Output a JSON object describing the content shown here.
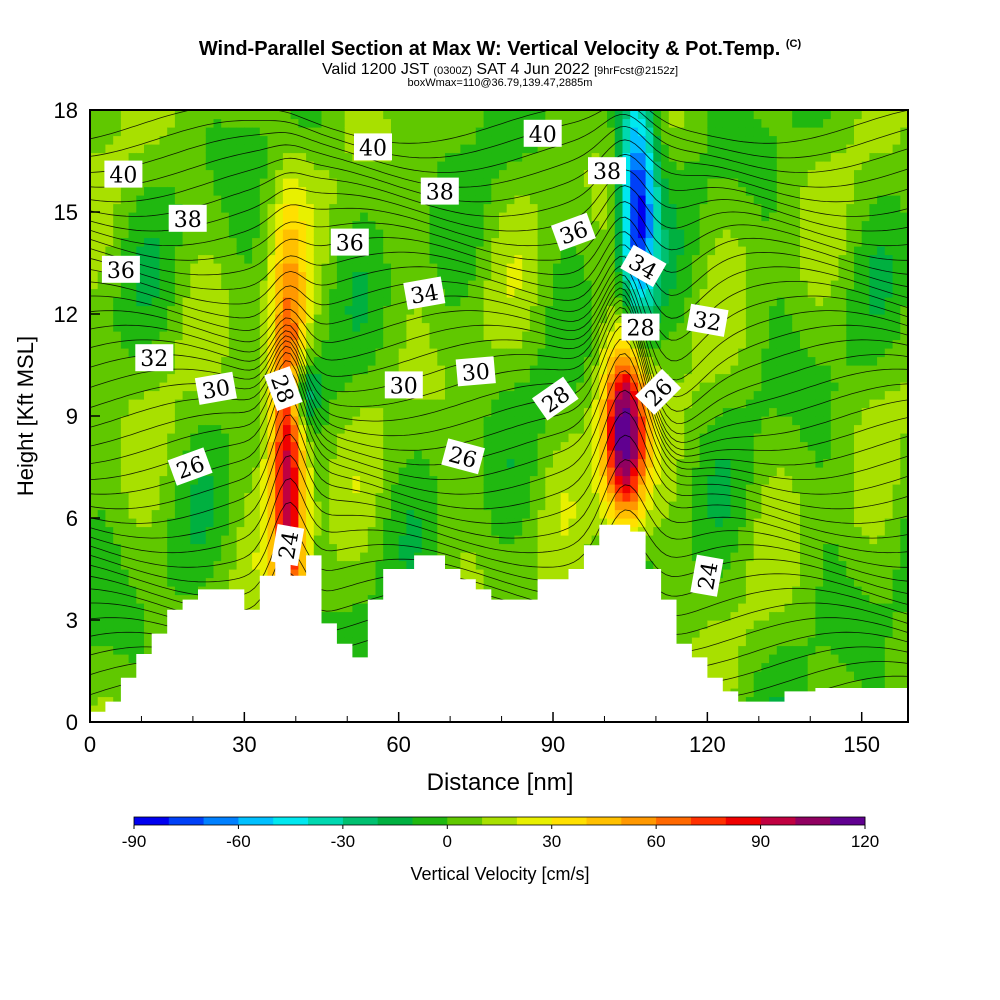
{
  "header": {
    "title": "Wind-Parallel Section at Max W: Vertical Velocity & Pot.Temp.",
    "copyright": "(C)",
    "valid_prefix": "Valid 1200 JST",
    "valid_utc": "(0300Z)",
    "valid_date": "SAT 4 Jun 2022",
    "forecast": "[9hrFcst@2152z]",
    "box_info": "boxWmax=110@36.79,139.47,2885m"
  },
  "chart_data": {
    "type": "heatmap",
    "xlabel": "Distance [nm]",
    "ylabel": "Height [Kft MSL]",
    "xlim": [
      0,
      159
    ],
    "ylim": [
      0,
      18
    ],
    "x_ticks": [
      0,
      30,
      60,
      90,
      120,
      150
    ],
    "x_tick_labels": [
      "0",
      "30",
      "60",
      "90",
      "120",
      "150"
    ],
    "y_ticks": [
      0,
      3,
      6,
      9,
      12,
      15,
      18
    ],
    "y_tick_labels": [
      "0",
      "3",
      "6",
      "9",
      "12",
      "15",
      "18"
    ],
    "field": "Vertical Velocity [cm/s]",
    "updrafts": [
      {
        "x": 38.5,
        "width": 2.5,
        "base": 4.3,
        "top": 18,
        "peak_height": 7.5,
        "w_max": 95
      },
      {
        "x": 104,
        "width": 3.0,
        "base": 5.6,
        "top": 11.5,
        "peak_height": 8.5,
        "w_max": 120
      }
    ],
    "downdrafts": [
      {
        "x": 41.5,
        "width": 2.0,
        "base": 8.8,
        "top": 10.5,
        "w_min": -45
      },
      {
        "x": 106.5,
        "width": 2.5,
        "base": 12.5,
        "top": 18,
        "w_min": -90
      }
    ],
    "terrain": [
      [
        0,
        0.3
      ],
      [
        3,
        0.6
      ],
      [
        6,
        1.3
      ],
      [
        9,
        2.0
      ],
      [
        12,
        2.6
      ],
      [
        15,
        3.3
      ],
      [
        18,
        3.6
      ],
      [
        21,
        3.9
      ],
      [
        27,
        3.9
      ],
      [
        30,
        3.3
      ],
      [
        33,
        4.3
      ],
      [
        36,
        4.9
      ],
      [
        39,
        4.3
      ],
      [
        42,
        4.9
      ],
      [
        45,
        2.9
      ],
      [
        48,
        2.3
      ],
      [
        51,
        1.9
      ],
      [
        54,
        3.6
      ],
      [
        57,
        4.5
      ],
      [
        63,
        4.9
      ],
      [
        69,
        4.5
      ],
      [
        72,
        4.2
      ],
      [
        75,
        3.9
      ],
      [
        78,
        3.6
      ],
      [
        84,
        3.6
      ],
      [
        87,
        4.2
      ],
      [
        93,
        4.5
      ],
      [
        96,
        5.2
      ],
      [
        99,
        5.8
      ],
      [
        105,
        5.6
      ],
      [
        108,
        4.5
      ],
      [
        111,
        3.6
      ],
      [
        114,
        2.3
      ],
      [
        117,
        1.9
      ],
      [
        120,
        1.3
      ],
      [
        123,
        0.9
      ],
      [
        126,
        0.6
      ],
      [
        132,
        0.6
      ],
      [
        135,
        0.9
      ],
      [
        141,
        1.0
      ],
      [
        159,
        1.0
      ]
    ],
    "contour_levels": [
      24,
      26,
      28,
      30,
      32,
      34,
      36,
      38,
      40
    ],
    "contour_labels": [
      {
        "text": "40",
        "x": 6.5,
        "y": 16.1,
        "angle": 0
      },
      {
        "text": "38",
        "x": 19,
        "y": 14.8,
        "angle": 0
      },
      {
        "text": "36",
        "x": 6,
        "y": 13.3,
        "angle": 0
      },
      {
        "text": "32",
        "x": 12.5,
        "y": 10.7,
        "angle": 0
      },
      {
        "text": "30",
        "x": 24.5,
        "y": 9.8,
        "angle": -10
      },
      {
        "text": "28",
        "x": 37.5,
        "y": 9.8,
        "angle": 70
      },
      {
        "text": "26",
        "x": 19.5,
        "y": 7.5,
        "angle": -20
      },
      {
        "text": "24",
        "x": 38.5,
        "y": 5.2,
        "angle": -80
      },
      {
        "text": "40",
        "x": 55,
        "y": 16.9,
        "angle": 0
      },
      {
        "text": "36",
        "x": 50.5,
        "y": 14.1,
        "angle": 0
      },
      {
        "text": "38",
        "x": 68,
        "y": 15.6,
        "angle": 0
      },
      {
        "text": "34",
        "x": 65,
        "y": 12.6,
        "angle": -10
      },
      {
        "text": "30",
        "x": 61,
        "y": 9.9,
        "angle": 0
      },
      {
        "text": "30",
        "x": 75,
        "y": 10.3,
        "angle": -5
      },
      {
        "text": "26",
        "x": 72.5,
        "y": 7.8,
        "angle": 15
      },
      {
        "text": "40",
        "x": 88,
        "y": 17.3,
        "angle": 0
      },
      {
        "text": "38",
        "x": 100.5,
        "y": 16.2,
        "angle": 0
      },
      {
        "text": "36",
        "x": 94,
        "y": 14.4,
        "angle": -20
      },
      {
        "text": "34",
        "x": 107.5,
        "y": 13.4,
        "angle": 30
      },
      {
        "text": "32",
        "x": 120,
        "y": 11.8,
        "angle": 10
      },
      {
        "text": "28",
        "x": 90.5,
        "y": 9.5,
        "angle": -35
      },
      {
        "text": "28",
        "x": 107,
        "y": 11.6,
        "angle": 0
      },
      {
        "text": "26",
        "x": 110.5,
        "y": 9.7,
        "angle": -45
      },
      {
        "text": "24",
        "x": 120,
        "y": 4.3,
        "angle": -80
      }
    ],
    "colorbar": {
      "label": "Vertical Velocity [cm/s]",
      "range": [
        -90,
        120
      ],
      "step": 10,
      "tick_labels": [
        "-90",
        "-60",
        "-30",
        "0",
        "30",
        "60",
        "90",
        "120"
      ],
      "colors": [
        "#0000f0",
        "#0040f8",
        "#0080ff",
        "#00c0ff",
        "#00e8f0",
        "#00d8b0",
        "#00c070",
        "#00b040",
        "#20b810",
        "#60c800",
        "#a8e000",
        "#e8f000",
        "#ffe000",
        "#ffc000",
        "#ff9800",
        "#ff6800",
        "#ff3000",
        "#f00000",
        "#c00040",
        "#900060",
        "#600090"
      ]
    }
  }
}
